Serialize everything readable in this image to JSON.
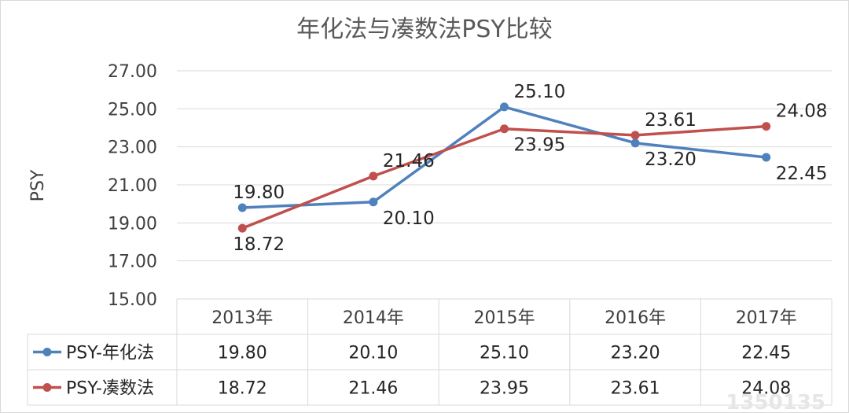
{
  "chart_data": {
    "type": "line",
    "title": "年化法与凑数法PSY比较",
    "ylabel": "PSY",
    "xlabel": "",
    "ylim": [
      15,
      27
    ],
    "yticks": [
      "15.00",
      "17.00",
      "19.00",
      "21.00",
      "23.00",
      "25.00",
      "27.00"
    ],
    "categories": [
      "2013年",
      "2014年",
      "2015年",
      "2016年",
      "2017年"
    ],
    "grid": true,
    "legend": "data-table",
    "series": [
      {
        "name": "PSY-年化法",
        "color": "#4f81bd",
        "values": [
          19.8,
          20.1,
          25.1,
          23.2,
          22.45
        ],
        "labels": [
          "19.80",
          "20.10",
          "25.10",
          "23.20",
          "22.45"
        ]
      },
      {
        "name": "PSY-凑数法",
        "color": "#c0504d",
        "values": [
          18.72,
          21.46,
          23.95,
          23.61,
          24.08
        ],
        "labels": [
          "18.72",
          "21.46",
          "23.95",
          "23.61",
          "24.08"
        ]
      }
    ]
  },
  "watermark": "1350135"
}
